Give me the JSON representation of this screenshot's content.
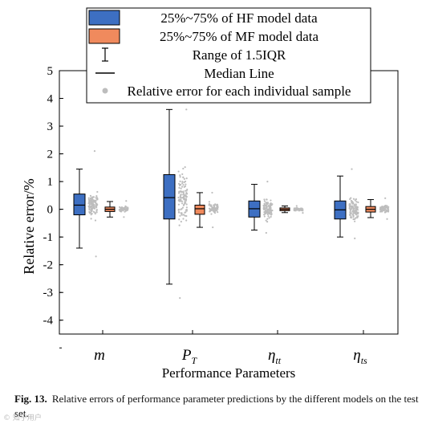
{
  "chart_data": {
    "type": "box",
    "ylabel": "Relative error/%",
    "xlabel": "Performance Parameters",
    "ylim": [
      -4.5,
      5
    ],
    "yticks": [
      "5",
      "4",
      "3",
      "2",
      "1",
      "0",
      "-1",
      "-2",
      "-3",
      "-4"
    ],
    "ytick_values": [
      5,
      4,
      3,
      2,
      1,
      0,
      -1,
      -2,
      -3,
      -4
    ],
    "categories": [
      {
        "base": "m",
        "sub": ""
      },
      {
        "base": "P",
        "sub": "T"
      },
      {
        "base": "η",
        "sub": "tt"
      },
      {
        "base": "η",
        "sub": "ts"
      }
    ],
    "legend": {
      "placement": "top",
      "entries": [
        {
          "key": "hf_box",
          "label": "25%~75% of HF model data"
        },
        {
          "key": "mf_box",
          "label": "25%~75% of MF model data"
        },
        {
          "key": "whisker",
          "label": "Range of 1.5IQR"
        },
        {
          "key": "median",
          "label": "Median Line"
        },
        {
          "key": "points",
          "label": "Relative error for each individual sample"
        }
      ]
    },
    "series": [
      {
        "key": "HF",
        "color": "#3d6fc2",
        "boxes": [
          {
            "q1": -0.2,
            "median": 0.15,
            "q3": 0.55,
            "whisker_low": -1.4,
            "whisker_high": 1.45,
            "points_low": -1.7,
            "points_high": 2.1
          },
          {
            "q1": -0.35,
            "median": 0.42,
            "q3": 1.25,
            "whisker_low": -2.7,
            "whisker_high": 3.6,
            "points_low": -3.2,
            "points_high": 3.6
          },
          {
            "q1": -0.28,
            "median": 0.02,
            "q3": 0.3,
            "whisker_low": -0.75,
            "whisker_high": 0.9,
            "points_low": -0.85,
            "points_high": 1.0
          },
          {
            "q1": -0.35,
            "median": -0.02,
            "q3": 0.3,
            "whisker_low": -1.0,
            "whisker_high": 1.2,
            "points_low": -1.05,
            "points_high": 1.45
          }
        ]
      },
      {
        "key": "MF",
        "color": "#f08a5d",
        "boxes": [
          {
            "q1": -0.08,
            "median": 0.0,
            "q3": 0.08,
            "whisker_low": -0.28,
            "whisker_high": 0.28,
            "points_low": -0.28,
            "points_high": 0.3
          },
          {
            "q1": -0.18,
            "median": 0.02,
            "q3": 0.15,
            "whisker_low": -0.65,
            "whisker_high": 0.6,
            "points_low": -0.65,
            "points_high": 0.6
          },
          {
            "q1": -0.05,
            "median": 0.0,
            "q3": 0.05,
            "whisker_low": -0.12,
            "whisker_high": 0.12,
            "points_low": -0.13,
            "points_high": 0.12
          },
          {
            "q1": -0.1,
            "median": 0.0,
            "q3": 0.1,
            "whisker_low": -0.3,
            "whisker_high": 0.35,
            "points_low": -0.35,
            "points_high": 0.4
          }
        ]
      }
    ],
    "grid": false,
    "point_color": "#bdbdbd"
  },
  "caption": {
    "label": "Fig. 13.",
    "text": "Relative errors of performance parameter predictions by the different models on the test set."
  },
  "watermark": "© 知乎用户"
}
